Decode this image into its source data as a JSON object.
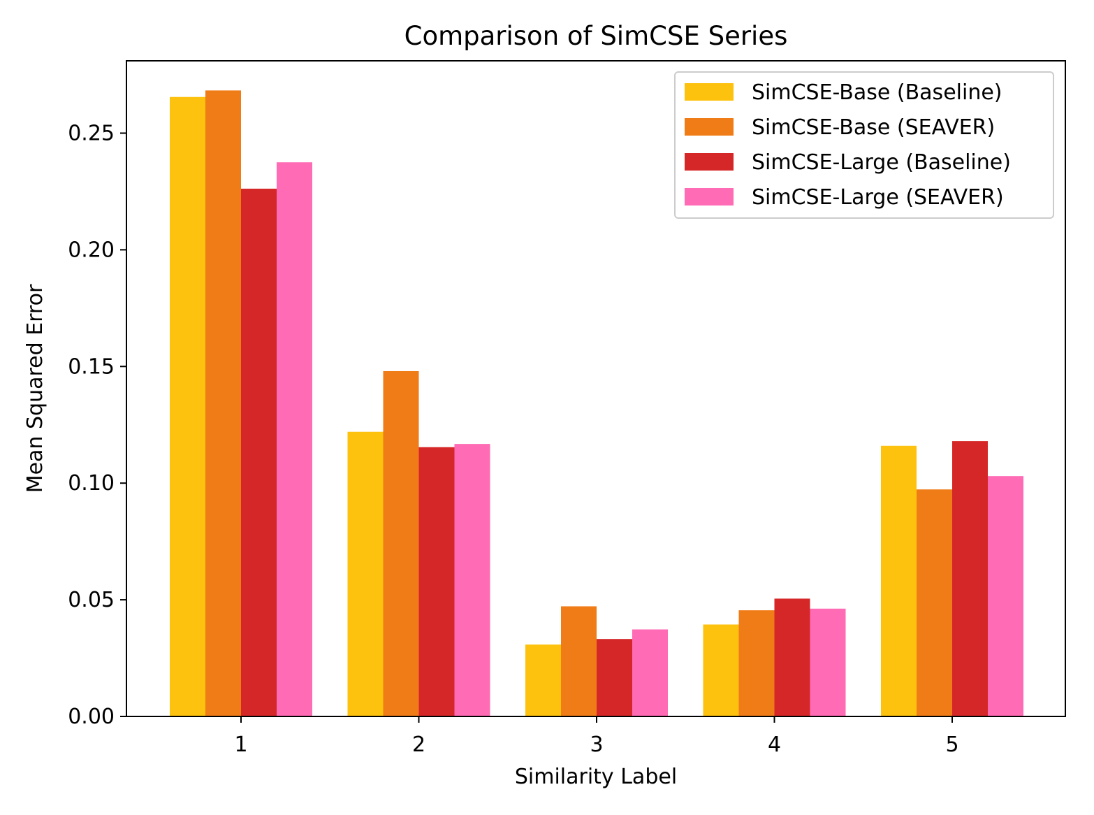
{
  "chart_data": {
    "type": "bar",
    "title": "Comparison of SimCSE Series",
    "xlabel": "Similarity Label",
    "ylabel": "Mean Squared Error",
    "categories": [
      "1",
      "2",
      "3",
      "4",
      "5"
    ],
    "ylim": [
      0,
      0.281
    ],
    "yticks": [
      "0.00",
      "0.05",
      "0.10",
      "0.15",
      "0.20",
      "0.25"
    ],
    "ytick_values": [
      0.0,
      0.05,
      0.1,
      0.15,
      0.2,
      0.25
    ],
    "grid": false,
    "legend_position": "top-right",
    "series": [
      {
        "name": "SimCSE-Base (Baseline)",
        "color": "#FDC20E",
        "values": [
          0.2655,
          0.122,
          0.0308,
          0.0394,
          0.116
        ]
      },
      {
        "name": "SimCSE-Base (SEAVER)",
        "color": "#F07C17",
        "values": [
          0.2683,
          0.148,
          0.0472,
          0.0455,
          0.0973
        ]
      },
      {
        "name": "SimCSE-Large (Baseline)",
        "color": "#D62728",
        "values": [
          0.2262,
          0.1154,
          0.0332,
          0.0505,
          0.118
        ]
      },
      {
        "name": "SimCSE-Large (SEAVER)",
        "color": "#FF6BB4",
        "values": [
          0.2375,
          0.1168,
          0.0373,
          0.0462,
          0.103
        ]
      }
    ]
  }
}
